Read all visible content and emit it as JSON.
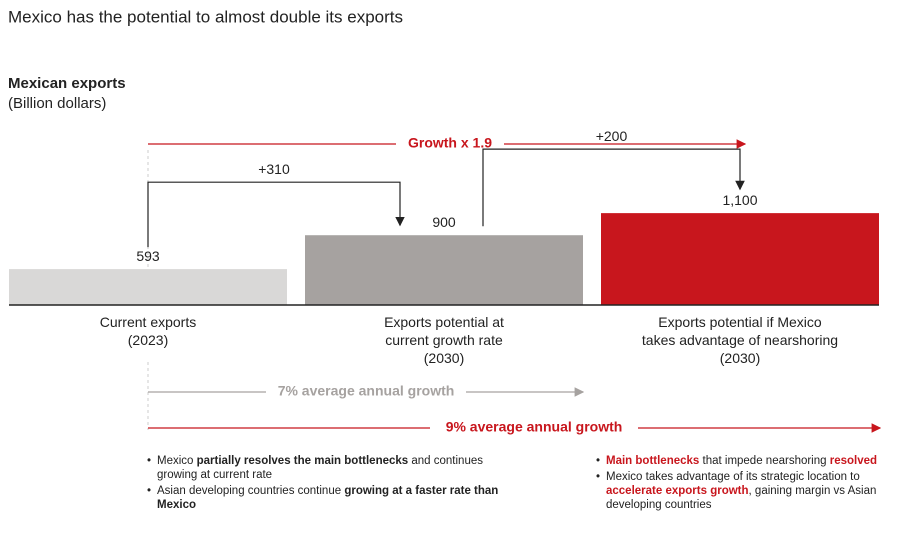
{
  "chart_data": {
    "type": "bar",
    "title": "Mexico has the potential to almost double its exports",
    "subtitle": "Mexican exports",
    "unit_label": "(Billion dollars)",
    "categories": [
      [
        "Current exports",
        "(2023)"
      ],
      [
        "Exports potential at",
        "current growth rate",
        "(2030)"
      ],
      [
        "Exports potential if Mexico",
        "takes advantage of nearshoring",
        "(2030)"
      ]
    ],
    "values": [
      593,
      900,
      1100
    ],
    "value_labels": [
      "593",
      "900",
      "1,100"
    ],
    "colors": [
      "#d9d8d7",
      "#a6a2a0",
      "#c8161d"
    ],
    "ylim": [
      268,
      1400
    ],
    "increments": [
      {
        "value": 310,
        "label": "+310"
      },
      {
        "value": 200,
        "label": "+200"
      }
    ],
    "growth_labels": {
      "total": "Growth x 1.9",
      "current_rate": "7% average annual growth",
      "nearshoring": "9% average annual growth"
    },
    "notes": {
      "left": [
        [
          {
            "text": "Mexico "
          },
          {
            "text": "partially resolves the main bottlenecks",
            "style": "bold"
          },
          {
            "text": " and continues growing at current rate"
          }
        ],
        [
          {
            "text": "Asian developing countries continue "
          },
          {
            "text": "growing at a faster rate than Mexico",
            "style": "bold"
          }
        ]
      ],
      "right": [
        [
          {
            "text": "Main bottlenecks",
            "style": "highlight"
          },
          {
            "text": " that impede nearshoring "
          },
          {
            "text": "resolved",
            "style": "highlight"
          }
        ],
        [
          {
            "text": "Mexico takes advantage of its strategic location to "
          },
          {
            "text": "accelerate exports growth",
            "style": "highlight"
          },
          {
            "text": ", gaining margin vs Asian developing countries"
          }
        ]
      ]
    }
  }
}
